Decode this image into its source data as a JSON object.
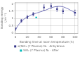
{
  "chart_data": {
    "type": "scatter",
    "xlabel": "Bonding time at room temperature (h)",
    "ylabel": "Bonding energy\n(J.m⁻²)",
    "xlim": [
      0,
      105
    ],
    "ylim": [
      0,
      2.1
    ],
    "xticks": [
      0,
      20,
      40,
      60,
      80,
      100
    ],
    "yticks": [
      0,
      0.5,
      1,
      1.5,
      2
    ],
    "grid": true,
    "legend": "bottom",
    "series": [
      {
        "type": "line",
        "color": "#7777bb",
        "x": [
          0,
          3,
          6,
          9,
          12,
          15,
          18,
          21,
          24,
          27,
          30,
          33,
          36,
          39,
          42,
          45,
          48,
          51,
          54,
          57,
          60,
          63,
          66,
          69,
          72,
          75,
          78,
          81,
          84,
          87,
          90,
          93,
          96,
          99,
          102
        ],
        "values": [
          0.2,
          0.45,
          0.62,
          0.76,
          0.88,
          0.98,
          1.06,
          1.13,
          1.19,
          1.25,
          1.3,
          1.34,
          1.38,
          1.42,
          1.46,
          1.5,
          1.54,
          1.58,
          1.63,
          1.68,
          1.73,
          1.77,
          1.8,
          1.82,
          1.83,
          1.83,
          1.82,
          1.79,
          1.74,
          1.69,
          1.63,
          1.56,
          1.5,
          1.43,
          1.37
        ]
      },
      {
        "name": "si/SiO₂ (Y Plasma) N₂ - Anhydrous",
        "type": "scatter",
        "color": "#333388",
        "marker": "square",
        "x": [
          0,
          10,
          20,
          30,
          48,
          60,
          70,
          80,
          100
        ],
        "values": [
          0.3,
          0.85,
          1.1,
          1.3,
          1.75,
          1.85,
          1.65,
          1.5,
          1.4
        ],
        "error_minus": [
          0.1,
          0.1,
          0.1,
          0.12,
          0.18,
          0.15,
          0.15,
          0.15,
          0.18
        ],
        "error_plus": [
          0.1,
          0.1,
          0.1,
          0.12,
          0.18,
          0.15,
          0.15,
          0.15,
          0.18
        ]
      },
      {
        "name": "SiO₂ (Y Plasma) N₂ - After",
        "type": "scatter",
        "color": "#00bbbb",
        "marker": "square",
        "x": [
          35
        ],
        "values": [
          1.08
        ]
      }
    ]
  }
}
